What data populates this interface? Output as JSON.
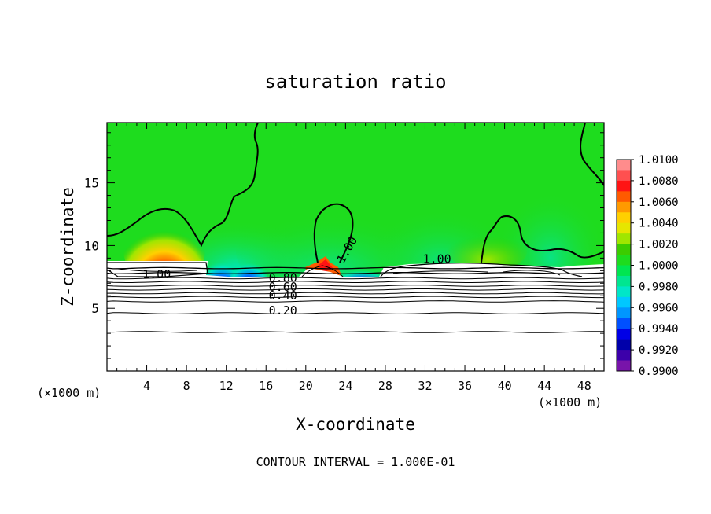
{
  "chart_data": {
    "type": "heatmap",
    "title": "saturation ratio",
    "xlabel": "X-coordinate",
    "ylabel": "Z-coordinate",
    "x_unit_label": "(×1000 m)",
    "x_unit_label_right": "(×1000 m)",
    "xlim": [
      0,
      50
    ],
    "ylim": [
      0,
      19.8
    ],
    "x_ticks": [
      4,
      8,
      12,
      16,
      20,
      24,
      28,
      32,
      36,
      40,
      44,
      48
    ],
    "y_ticks": [
      5,
      10,
      15
    ],
    "footer": "CONTOUR INTERVAL = 1.000E-01",
    "colorbar": {
      "labels": [
        "1.0100",
        "1.0080",
        "1.0060",
        "1.0040",
        "1.0020",
        "1.0000",
        "0.9980",
        "0.9960",
        "0.9940",
        "0.9920",
        "0.9900"
      ],
      "colors": [
        "#ff8c8c",
        "#ff5050",
        "#ff1414",
        "#ff5a00",
        "#ff9a00",
        "#ffd000",
        "#e6e600",
        "#a0e600",
        "#3ccc00",
        "#1edc1e",
        "#00e650",
        "#00e690",
        "#00e6c8",
        "#00c8ff",
        "#0096ff",
        "#0050ff",
        "#0000e6",
        "#0000aa",
        "#3c00aa",
        "#7814aa"
      ]
    },
    "contour_labels": [
      {
        "text": "1.00",
        "x": 5.0,
        "z": 7.4
      },
      {
        "text": "1.00",
        "x": 24.5,
        "z": 9.5
      },
      {
        "text": "1.00",
        "x": 33.2,
        "z": 8.6
      },
      {
        "text": "0.80",
        "x": 17.7,
        "z": 7.1
      },
      {
        "text": "0.60",
        "x": 17.7,
        "z": 6.4
      },
      {
        "text": "0.40",
        "x": 17.7,
        "z": 5.7
      },
      {
        "text": "0.20",
        "x": 17.7,
        "z": 4.5
      }
    ],
    "contour_levels_z": [
      8.2,
      7.8,
      7.4,
      7.1,
      6.8,
      6.5,
      6.2,
      5.9,
      5.55,
      4.6,
      3.1
    ],
    "features": [
      {
        "kind": "max",
        "x": 5.8,
        "z": 9.6,
        "value": 1.008
      },
      {
        "kind": "max",
        "x": 22.2,
        "z": 8.6,
        "value": 1.007
      },
      {
        "kind": "min",
        "x": 12.0,
        "z": 8.0,
        "value": 0.994
      },
      {
        "kind": "min",
        "x": 14.0,
        "z": 8.0,
        "value": 0.993
      },
      {
        "kind": "min",
        "x": 46.5,
        "z": 7.8,
        "value": 0.992
      }
    ]
  }
}
